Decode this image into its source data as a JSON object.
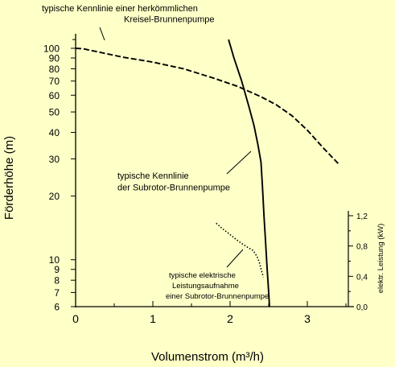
{
  "chart_data": {
    "type": "line",
    "xlabel": "Volumenstrom (m³/h)",
    "ylabel": "Förderhöhe (m)",
    "y2label": "elektr. Leistung (kW)",
    "yscale": "log",
    "xlim": [
      0,
      3.5
    ],
    "ylim": [
      6,
      115
    ],
    "y2lim": [
      0.0,
      1.2
    ],
    "x_ticks": [
      "0",
      "1",
      "2",
      "3"
    ],
    "y_ticks": [
      "100",
      "90",
      "80",
      "70",
      "60",
      "50",
      "40",
      "30",
      "20",
      "10",
      "9",
      "8",
      "7",
      "6"
    ],
    "y2_ticks": [
      "0,0",
      "0,4",
      "0,8",
      "1,2"
    ],
    "grid": false,
    "background": "#ffffc8",
    "series": [
      {
        "name": "typische Kennlinie einer herkömmlichen Kreisel-Brunnenpumpe",
        "axis": "left",
        "style": "dashed",
        "x": [
          0.0,
          0.1,
          0.3,
          0.6,
          1.0,
          1.4,
          1.8,
          2.1,
          2.4,
          2.6,
          2.8,
          3.0,
          3.2,
          3.4
        ],
        "y": [
          100,
          99.5,
          96,
          91,
          86,
          80,
          72,
          66,
          59,
          54,
          48,
          41,
          34,
          28.5
        ]
      },
      {
        "name": "typische Kennlinie der Subrotor-Brunnenpumpe",
        "axis": "left",
        "style": "solid",
        "x": [
          1.98,
          2.05,
          2.15,
          2.25,
          2.31,
          2.36,
          2.4,
          2.42,
          2.44,
          2.46,
          2.48,
          2.5,
          2.51
        ],
        "y": [
          110,
          90,
          70,
          52,
          43,
          35,
          29,
          22,
          16,
          12,
          9,
          7,
          6
        ]
      },
      {
        "name": "typische elektrische Leistungsaufnahme einer Subrotor-Brunnenpumpe",
        "axis": "right",
        "style": "dotted",
        "x": [
          1.82,
          1.9,
          2.0,
          2.1,
          2.2,
          2.3,
          2.35,
          2.38,
          2.4,
          2.43
        ],
        "y": [
          1.1,
          1.03,
          0.95,
          0.87,
          0.8,
          0.74,
          0.66,
          0.58,
          0.5,
          0.39
        ]
      }
    ],
    "annotations": [
      {
        "target": 0,
        "lines": [
          "typische Kennlinie einer herkömmlichen",
          "Kreisel-Brunnenpumpe"
        ]
      },
      {
        "target": 1,
        "lines": [
          "typische Kennlinie",
          "der Subrotor-Brunnenpumpe"
        ]
      },
      {
        "target": 2,
        "lines": [
          "typische elektrische",
          "Leistungsaufnahme",
          "einer Subrotor-Brunnenpumpe"
        ]
      }
    ]
  }
}
